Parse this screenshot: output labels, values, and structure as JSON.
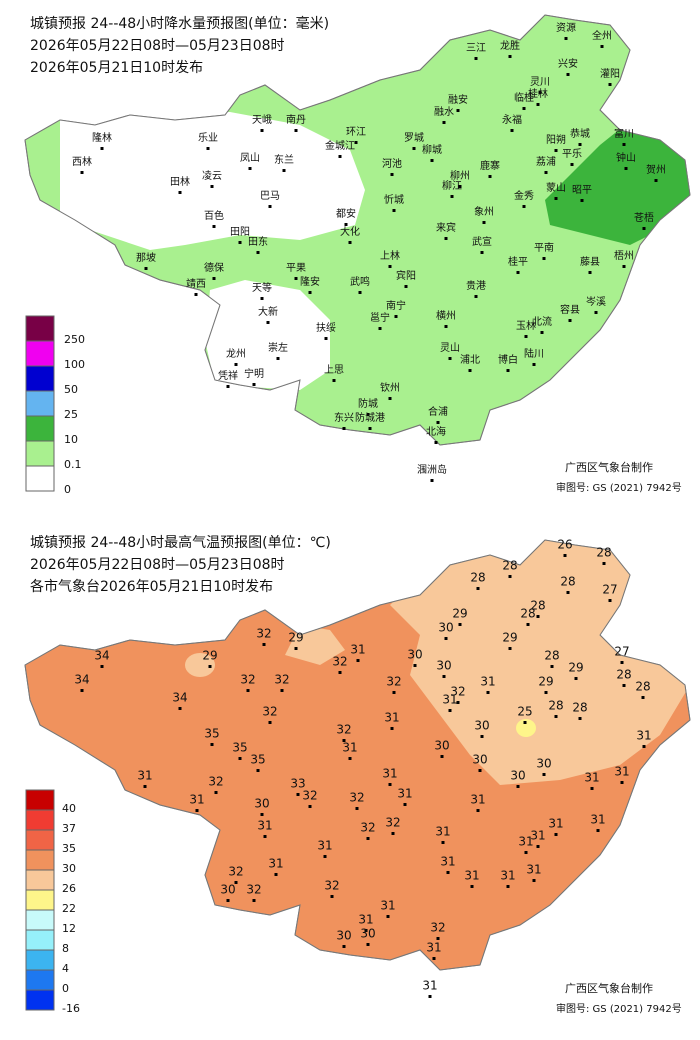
{
  "precip_map": {
    "title": "城镇预报 24--48小时降水量预报图(单位：毫米)",
    "period": "2026年05月22日08时—05月23日08时",
    "issued": "2026年05月21日10时发布",
    "legend": [
      250,
      100,
      50,
      25,
      10,
      0.1,
      0
    ],
    "cities": [
      "三江",
      "龙胜",
      "资源",
      "全州",
      "兴安",
      "灌阳",
      "灵川",
      "桂林",
      "临桂",
      "融安",
      "融水",
      "永福",
      "天峨",
      "南丹",
      "乐业",
      "隆林",
      "环江",
      "罗城",
      "恭城",
      "富川",
      "金城江",
      "阳朔",
      "平乐",
      "钟山",
      "贺州",
      "凤山",
      "东兰",
      "西林",
      "柳城",
      "河池",
      "鹿寨",
      "荔浦",
      "凌云",
      "田林",
      "巴马",
      "柳州",
      "柳江",
      "忻城",
      "金秀",
      "蒙山",
      "昭平",
      "苍梧",
      "都安",
      "象州",
      "百色",
      "大化",
      "田阳",
      "田东",
      "来宾",
      "武宣",
      "平南",
      "梧州",
      "藤县",
      "那坡",
      "上林",
      "桂平",
      "德保",
      "平果",
      "宾阳",
      "隆安",
      "武鸣",
      "靖西",
      "贵港",
      "天等",
      "岑溪",
      "南宁",
      "容县",
      "大新",
      "横州",
      "邕宁",
      "北流",
      "玉林",
      "扶绥",
      "崇左",
      "灵山",
      "龙州",
      "陆川",
      "浦北",
      "博白",
      "宁明",
      "凭祥",
      "上思",
      "钦州",
      "防城",
      "合浦",
      "东兴",
      "防城港",
      "北海",
      "涠洲岛"
    ],
    "credit": "广西区气象台制作",
    "map_number": "审图号: GS (2021) 7942号"
  },
  "temp_map": {
    "title": "城镇预报 24--48小时最高气温预报图(单位：℃)",
    "period": "2026年05月22日08时—05月23日08时",
    "issued": "各市气象台2026年05月21日10时发布",
    "legend": [
      40,
      37,
      35,
      30,
      26,
      22,
      12,
      8,
      4,
      0,
      -16
    ],
    "temperatures": [
      26,
      28,
      28,
      28,
      27,
      28,
      29,
      28,
      28,
      30,
      29,
      28,
      27,
      29,
      28,
      28,
      29,
      32,
      29,
      34,
      29,
      31,
      32,
      30,
      30,
      32,
      32,
      32,
      31,
      32,
      34,
      34,
      31,
      32,
      31,
      25,
      28,
      28,
      30,
      32,
      35,
      31,
      35,
      31,
      30,
      35,
      30,
      30,
      30,
      31,
      31,
      31,
      32,
      33,
      31,
      32,
      31,
      30,
      32,
      31,
      31,
      31,
      31,
      31,
      32,
      32,
      31,
      31,
      31,
      31,
      31,
      31,
      32,
      31,
      31,
      31,
      30,
      32,
      32,
      31,
      32,
      31,
      30,
      30,
      31,
      31
    ],
    "credit": "广西区气象台制作",
    "map_number": "审图号: GS (2021) 7942号"
  }
}
